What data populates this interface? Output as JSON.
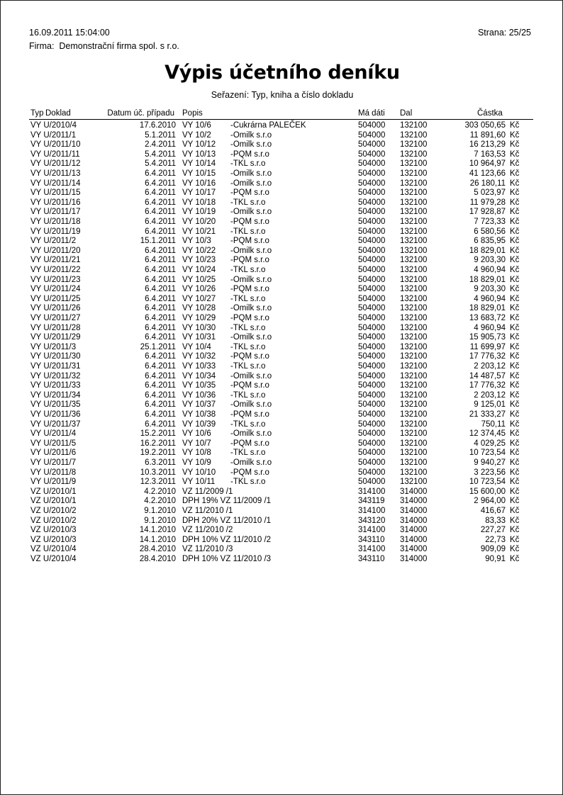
{
  "header": {
    "datetime": "16.09.2011 15:04:00",
    "page": "Strana: 25/25",
    "firma_label": "Firma:",
    "firma": "Demonstrační firma spol. s r.o.",
    "title": "Výpis účetního deníku",
    "sort": "Seřazení: Typ, kniha a číslo dokladu"
  },
  "columns": {
    "typ": "Typ",
    "doklad": "Doklad",
    "datum": "Datum úč. případu",
    "popis": "Popis",
    "ma_dati": "Má dáti",
    "dal": "Dal",
    "castka": "Částka"
  },
  "rows": [
    [
      "VY U/2010/4",
      "17.6.2010",
      "VY 10/6",
      "-Cukrárna PALEČEK",
      "504000",
      "132100",
      "303 050,65",
      "Kč"
    ],
    [
      "VY U/2011/1",
      "5.1.2011",
      "VY 10/2",
      "-Omilk s.r.o",
      "504000",
      "132100",
      "11 891,60",
      "Kč"
    ],
    [
      "VY U/2011/10",
      "2.4.2011",
      "VY 10/12",
      " -Omilk s.r.o",
      "504000",
      "132100",
      "16 213,29",
      "Kč"
    ],
    [
      "VY U/2011/11",
      "5.4.2011",
      "VY 10/13",
      " -PQM s.r.o",
      "504000",
      "132100",
      "7 163,53",
      "Kč"
    ],
    [
      "VY U/2011/12",
      "5.4.2011",
      "VY 10/14",
      " -TKL s.r.o",
      "504000",
      "132100",
      "10 964,97",
      "Kč"
    ],
    [
      "VY U/2011/13",
      "6.4.2011",
      "VY 10/15",
      " -Omilk s.r.o",
      "504000",
      "132100",
      "41 123,66",
      "Kč"
    ],
    [
      "VY U/2011/14",
      "6.4.2011",
      "VY 10/16",
      " -Omilk s.r.o",
      "504000",
      "132100",
      "26 180,11",
      "Kč"
    ],
    [
      "VY U/2011/15",
      "6.4.2011",
      "VY 10/17",
      " -PQM s.r.o",
      "504000",
      "132100",
      "5 023,97",
      "Kč"
    ],
    [
      "VY U/2011/16",
      "6.4.2011",
      "VY 10/18",
      " -TKL s.r.o",
      "504000",
      "132100",
      "11 979,28",
      "Kč"
    ],
    [
      "VY U/2011/17",
      "6.4.2011",
      "VY 10/19",
      " -Omilk s.r.o",
      "504000",
      "132100",
      "17 928,87",
      "Kč"
    ],
    [
      "VY U/2011/18",
      "6.4.2011",
      "VY 10/20",
      " -PQM s.r.o",
      "504000",
      "132100",
      "7 723,33",
      "Kč"
    ],
    [
      "VY U/2011/19",
      "6.4.2011",
      "VY 10/21",
      " -TKL s.r.o",
      "504000",
      "132100",
      "6 580,56",
      "Kč"
    ],
    [
      "VY U/2011/2",
      "15.1.2011",
      "VY 10/3",
      "-PQM s.r.o",
      "504000",
      "132100",
      "6 835,95",
      "Kč"
    ],
    [
      "VY U/2011/20",
      "6.4.2011",
      "VY 10/22",
      " -Omilk s.r.o",
      "504000",
      "132100",
      "18 829,01",
      "Kč"
    ],
    [
      "VY U/2011/21",
      "6.4.2011",
      "VY 10/23",
      " -PQM s.r.o",
      "504000",
      "132100",
      "9 203,30",
      "Kč"
    ],
    [
      "VY U/2011/22",
      "6.4.2011",
      "VY 10/24",
      " -TKL s.r.o",
      "504000",
      "132100",
      "4 960,94",
      "Kč"
    ],
    [
      "VY U/2011/23",
      "6.4.2011",
      "VY 10/25",
      " -Omilk s.r.o",
      "504000",
      "132100",
      "18 829,01",
      "Kč"
    ],
    [
      "VY U/2011/24",
      "6.4.2011",
      "VY 10/26",
      " -PQM s.r.o",
      "504000",
      "132100",
      "9 203,30",
      "Kč"
    ],
    [
      "VY U/2011/25",
      "6.4.2011",
      "VY 10/27",
      " -TKL s.r.o",
      "504000",
      "132100",
      "4 960,94",
      "Kč"
    ],
    [
      "VY U/2011/26",
      "6.4.2011",
      "VY 10/28",
      " -Omilk s.r.o",
      "504000",
      "132100",
      "18 829,01",
      "Kč"
    ],
    [
      "VY U/2011/27",
      "6.4.2011",
      "VY 10/29",
      " -PQM s.r.o",
      "504000",
      "132100",
      "13 683,72",
      "Kč"
    ],
    [
      "VY U/2011/28",
      "6.4.2011",
      "VY 10/30",
      " -TKL s.r.o",
      "504000",
      "132100",
      "4 960,94",
      "Kč"
    ],
    [
      "VY U/2011/29",
      "6.4.2011",
      "VY 10/31",
      " -Omilk s.r.o",
      "504000",
      "132100",
      "15 905,73",
      "Kč"
    ],
    [
      "VY U/2011/3",
      "25.1.2011",
      "VY 10/4",
      "-TKL s.r.o",
      "504000",
      "132100",
      "11 699,97",
      "Kč"
    ],
    [
      "VY U/2011/30",
      "6.4.2011",
      "VY 10/32",
      " -PQM s.r.o",
      "504000",
      "132100",
      "17 776,32",
      "Kč"
    ],
    [
      "VY U/2011/31",
      "6.4.2011",
      "VY 10/33",
      " -TKL s.r.o",
      "504000",
      "132100",
      "2 203,12",
      "Kč"
    ],
    [
      "VY U/2011/32",
      "6.4.2011",
      "VY 10/34",
      " -Omilk s.r.o",
      "504000",
      "132100",
      "14 487,57",
      "Kč"
    ],
    [
      "VY U/2011/33",
      "6.4.2011",
      "VY 10/35",
      " -PQM s.r.o",
      "504000",
      "132100",
      "17 776,32",
      "Kč"
    ],
    [
      "VY U/2011/34",
      "6.4.2011",
      "VY 10/36",
      " -TKL s.r.o",
      "504000",
      "132100",
      "2 203,12",
      "Kč"
    ],
    [
      "VY U/2011/35",
      "6.4.2011",
      "VY 10/37",
      " -Omilk s.r.o",
      "504000",
      "132100",
      "9 125,01",
      "Kč"
    ],
    [
      "VY U/2011/36",
      "6.4.2011",
      "VY 10/38",
      " -PQM s.r.o",
      "504000",
      "132100",
      "21 333,27",
      "Kč"
    ],
    [
      "VY U/2011/37",
      "6.4.2011",
      "VY 10/39",
      " -TKL s.r.o",
      "504000",
      "132100",
      "750,11",
      "Kč"
    ],
    [
      "VY U/2011/4",
      "15.2.2011",
      "VY 10/6",
      "-Omilk s.r.o",
      "504000",
      "132100",
      "12 374,45",
      "Kč"
    ],
    [
      "VY U/2011/5",
      "16.2.2011",
      "VY 10/7",
      "-PQM s.r.o",
      "504000",
      "132100",
      "4 029,25",
      "Kč"
    ],
    [
      "VY U/2011/6",
      "19.2.2011",
      "VY 10/8",
      "-TKL s.r.o",
      "504000",
      "132100",
      "10 723,54",
      "Kč"
    ],
    [
      "VY U/2011/7",
      "6.3.2011",
      "VY 10/9",
      "-Omilk s.r.o",
      "504000",
      "132100",
      "9 940,27",
      "Kč"
    ],
    [
      "VY U/2011/8",
      "10.3.2011",
      "VY 10/10",
      " -PQM s.r.o",
      "504000",
      "132100",
      "3 223,56",
      "Kč"
    ],
    [
      "VY U/2011/9",
      "12.3.2011",
      "VY 10/11",
      " -TKL s.r.o",
      "504000",
      "132100",
      "10 723,54",
      "Kč"
    ],
    [
      "VZ U/2010/1",
      "4.2.2010",
      "VZ 11/2009 /1",
      "",
      "314100",
      "314000",
      "15 600,00",
      "Kč"
    ],
    [
      "VZ U/2010/1",
      "4.2.2010",
      "DPH 19% VZ 11/2009 /1",
      "",
      "343119",
      "314000",
      "2 964,00",
      "Kč"
    ],
    [
      "VZ U/2010/2",
      "9.1.2010",
      "VZ 11/2010 /1",
      "",
      "314100",
      "314000",
      "416,67",
      "Kč"
    ],
    [
      "VZ U/2010/2",
      "9.1.2010",
      "DPH 20% VZ 11/2010 /1",
      "",
      "343120",
      "314000",
      "83,33",
      "Kč"
    ],
    [
      "VZ U/2010/3",
      "14.1.2010",
      "VZ 11/2010 /2",
      "",
      "314100",
      "314000",
      "227,27",
      "Kč"
    ],
    [
      "VZ U/2010/3",
      "14.1.2010",
      "DPH 10% VZ 11/2010 /2",
      "",
      "343110",
      "314000",
      "22,73",
      "Kč"
    ],
    [
      "VZ U/2010/4",
      "28.4.2010",
      "VZ 11/2010 /3",
      "",
      "314100",
      "314000",
      "909,09",
      "Kč"
    ],
    [
      "VZ U/2010/4",
      "28.4.2010",
      "DPH 10% VZ 11/2010 /3",
      "",
      "343110",
      "314000",
      "90,91",
      "Kč"
    ]
  ]
}
